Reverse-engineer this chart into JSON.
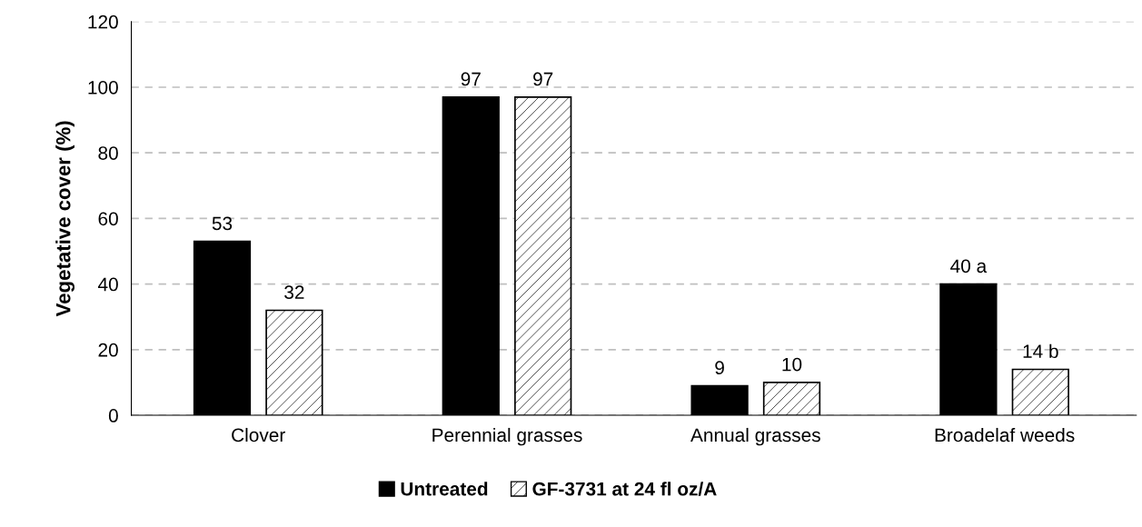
{
  "chart_data": {
    "type": "bar",
    "ylabel": "Vegetative cover (%)",
    "categories": [
      "Clover",
      "Perennial grasses",
      "Annual grasses",
      "Broadelaf weeds"
    ],
    "series": [
      {
        "name": "Untreated",
        "color": "#000000",
        "values": [
          53,
          97,
          9,
          40
        ],
        "value_labels": [
          "53",
          "97",
          "9",
          "40 a"
        ]
      },
      {
        "name": "GF-3731 at 24 fl oz/A",
        "color": "#000000",
        "values": [
          32,
          97,
          10,
          14
        ],
        "value_labels": [
          "32",
          "97",
          "10",
          "14 b"
        ]
      }
    ],
    "ylim": [
      0,
      120
    ],
    "yticks": [
      0,
      20,
      40,
      60,
      80,
      100,
      120
    ],
    "grid": "y",
    "legend": "bottom"
  }
}
